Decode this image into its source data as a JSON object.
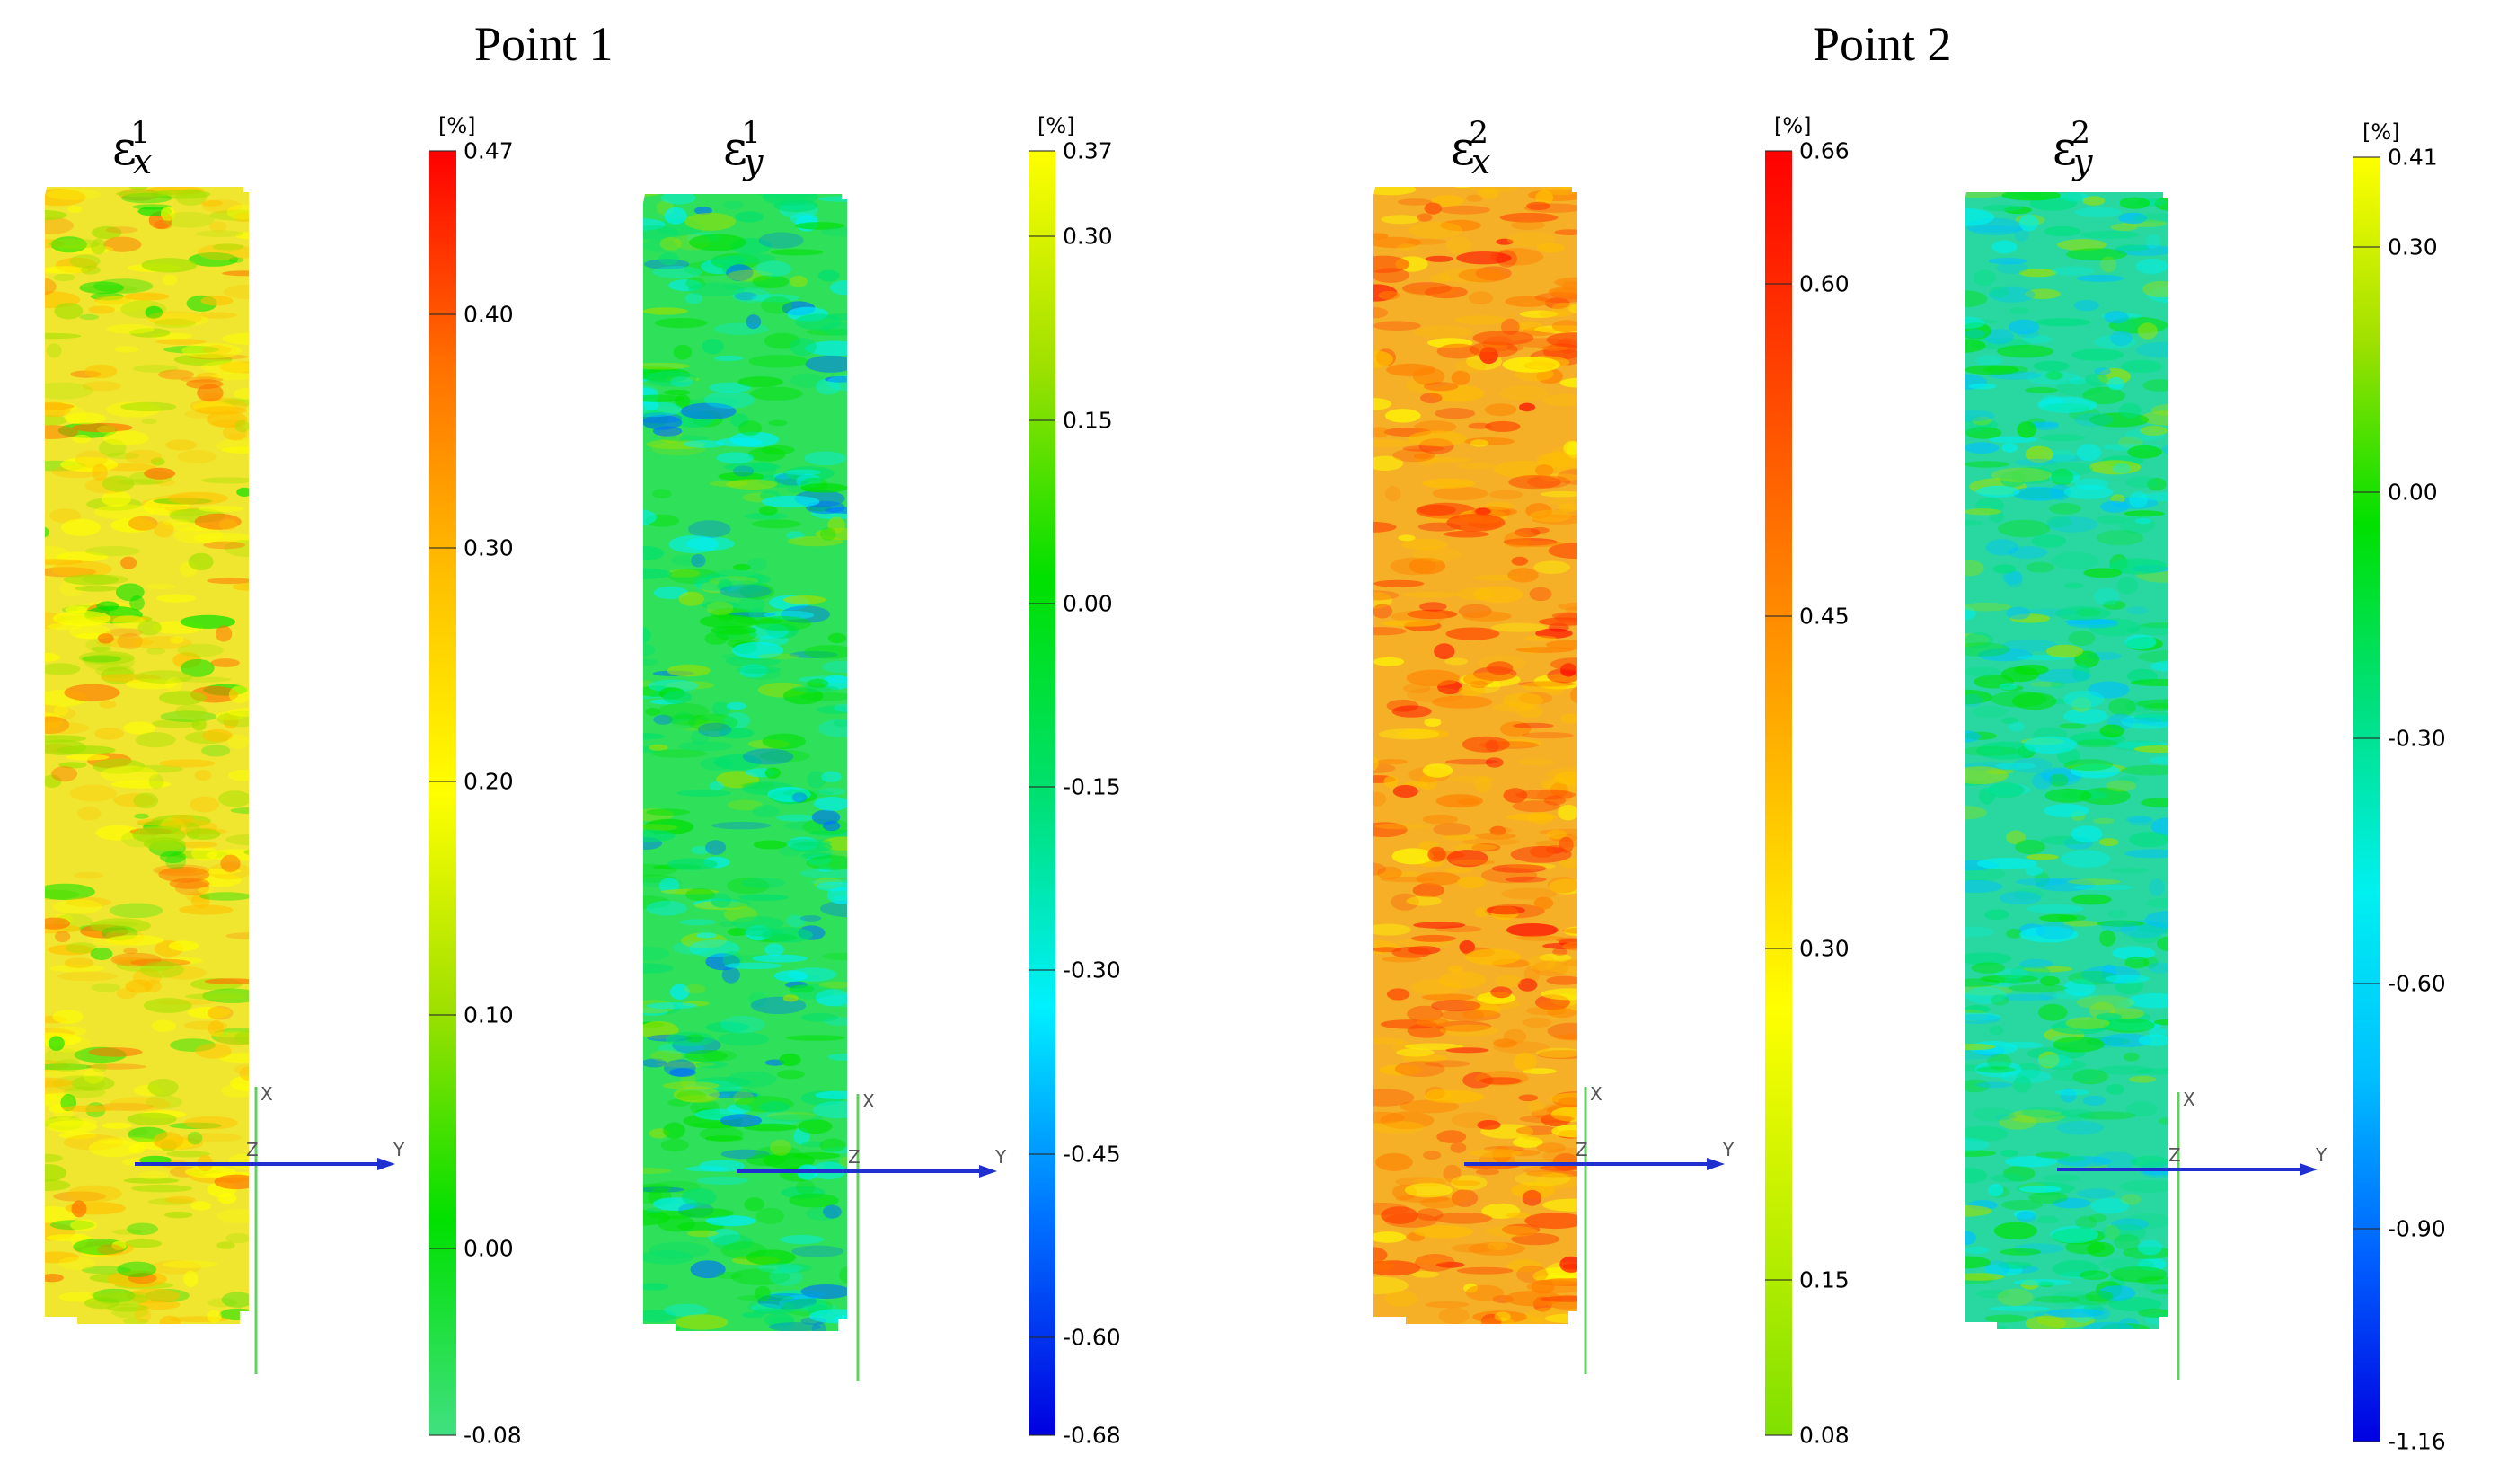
{
  "titles": {
    "point1": "Point 1",
    "point2": "Point 2"
  },
  "unit": "[%]",
  "axis_labels": {
    "x": "X",
    "y": "Y",
    "z": "Z"
  },
  "panels": [
    {
      "id": "ex1",
      "symbol": "ε",
      "subscript": "x",
      "superscript": "1",
      "dominant_color": "#f0e630",
      "colorbar": {
        "min": -0.08,
        "max": 0.47,
        "stops": [
          "#40e080",
          "#00e000",
          "#a0e000",
          "#ffff00",
          "#ffc000",
          "#ff7000",
          "#ff0000"
        ],
        "ticks": [
          "0.47",
          "0.40",
          "0.30",
          "0.20",
          "0.10",
          "0.00",
          "-0.08"
        ]
      }
    },
    {
      "id": "ey1",
      "symbol": "ε",
      "subscript": "y",
      "superscript": "1",
      "dominant_color": "#2ee05a",
      "colorbar": {
        "min": -0.68,
        "max": 0.37,
        "stops": [
          "#0000e0",
          "#0070ff",
          "#00f0ff",
          "#00e070",
          "#00e000",
          "#a0e000",
          "#ffff00"
        ],
        "ticks": [
          "0.37",
          "0.30",
          "0.15",
          "0.00",
          "-0.15",
          "-0.30",
          "-0.45",
          "-0.60",
          "-0.68"
        ]
      }
    },
    {
      "id": "ex2",
      "symbol": "ε",
      "subscript": "x",
      "superscript": "2",
      "dominant_color": "#f5b028",
      "colorbar": {
        "min": 0.08,
        "max": 0.66,
        "stops": [
          "#80e000",
          "#c0f000",
          "#ffff00",
          "#ffc000",
          "#ff8000",
          "#ff4000",
          "#ff0000"
        ],
        "ticks": [
          "0.66",
          "0.60",
          "0.45",
          "0.30",
          "0.15",
          "0.08"
        ]
      }
    },
    {
      "id": "ey2",
      "symbol": "ε",
      "subscript": "y",
      "superscript": "2",
      "dominant_color": "#28d8a0",
      "colorbar": {
        "min": -1.16,
        "max": 0.41,
        "stops": [
          "#0000e0",
          "#0060ff",
          "#00c0ff",
          "#00f0f0",
          "#00e080",
          "#00e000",
          "#a0e000",
          "#ffff00"
        ],
        "ticks": [
          "0.41",
          "0.30",
          "0.00",
          "-0.30",
          "-0.60",
          "-0.90",
          "-1.16"
        ]
      }
    }
  ]
}
